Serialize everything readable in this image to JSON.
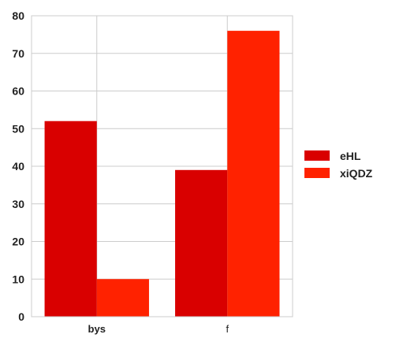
{
  "chart_data": {
    "type": "bar",
    "categories": [
      "bys",
      "f"
    ],
    "series": [
      {
        "name": "eHL",
        "values": [
          52,
          39
        ],
        "color": "#d90000"
      },
      {
        "name": "xiQDZ",
        "values": [
          10,
          76
        ],
        "color": "#ff2200"
      }
    ],
    "ylim": [
      0,
      80
    ],
    "yticks": [
      0,
      10,
      20,
      30,
      40,
      50,
      60,
      70,
      80
    ],
    "grid": true,
    "legend_position": "right",
    "title": "",
    "xlabel": "",
    "ylabel": ""
  },
  "colors": {
    "grid": "#cccccc",
    "axis_frame": "#cccccc",
    "text": "#222222"
  }
}
